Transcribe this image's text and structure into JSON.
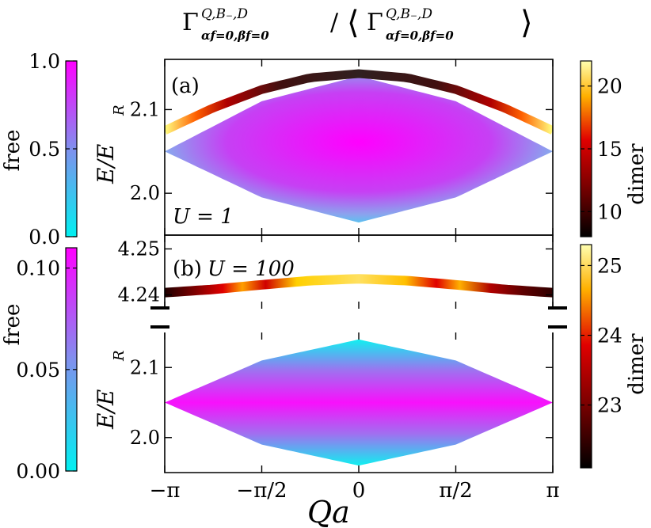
{
  "title": {
    "text": "Γ^{Q,B₋,D}_{α_f=0, β_f=0} / ⟨ Γ^{Q,B₋,D}_{α_f=0, β_f=0} ⟩",
    "gamma": "Γ",
    "sup": "Q,B₋,D",
    "sub": "αf=0,βf=0",
    "slash": "/",
    "lang": "⟨",
    "rang": "⟩"
  },
  "x_axis": {
    "label": "Qa",
    "ticks": [
      "−π",
      "−π/2",
      "0",
      "π/2",
      "π"
    ]
  },
  "colors": {
    "free_low": "#00f0f0",
    "free_high": "#ff00ff",
    "dimer_low": "#000000",
    "dimer_mid": "#e00000",
    "dimer_high": "#ffffa0"
  },
  "chart_data": [
    {
      "type": "heatmap",
      "panel": "(a)",
      "annotation": "U = 1",
      "ylabel": "E/E_R",
      "ylabel_main": "E/E",
      "ylabel_sub": "R",
      "xlim": [
        -3.1416,
        3.1416
      ],
      "ylim": [
        1.95,
        2.16
      ],
      "yticks": [
        2.0,
        2.1
      ],
      "ytick_labels": [
        "2.0",
        "2.1"
      ],
      "free_band": {
        "x": [
          -3.1416,
          -1.5708,
          0,
          1.5708,
          3.1416
        ],
        "upper": [
          2.05,
          2.11,
          2.14,
          2.11,
          2.05
        ],
        "lower": [
          2.05,
          1.995,
          1.965,
          1.995,
          2.05
        ]
      },
      "dimer_band": {
        "x": [
          -3.1416,
          -2.3562,
          -1.5708,
          -0.7854,
          0,
          0.7854,
          1.5708,
          2.3562,
          3.1416
        ],
        "energy": [
          2.075,
          2.102,
          2.124,
          2.138,
          2.143,
          2.138,
          2.124,
          2.102,
          2.075
        ],
        "value": [
          21,
          13,
          10,
          9.5,
          9,
          9.5,
          10,
          13,
          21
        ]
      },
      "colorbar_free": {
        "label": "free",
        "range": [
          0.0,
          1.0
        ],
        "ticks": [
          "0.0",
          "0.5",
          "1.0"
        ]
      },
      "colorbar_dimer": {
        "label": "dimer",
        "range": [
          8,
          22
        ],
        "ticks": [
          "10",
          "15",
          "20"
        ]
      }
    },
    {
      "type": "heatmap",
      "panel": "(b)",
      "annotation": "U = 100",
      "ylabel": "E/E_R",
      "ylabel_main": "E/E",
      "ylabel_sub": "R",
      "xlim": [
        -3.1416,
        3.1416
      ],
      "ylim_upper": [
        4.237,
        4.253
      ],
      "yticks_upper": [
        4.24,
        4.25
      ],
      "ytick_labels_upper": [
        "4.24",
        "4.25"
      ],
      "ylim_lower": [
        1.95,
        2.15
      ],
      "yticks_lower": [
        2.0,
        2.1
      ],
      "ytick_labels_lower": [
        "2.0",
        "2.1"
      ],
      "free_band": {
        "x": [
          -3.1416,
          -1.5708,
          0,
          1.5708,
          3.1416
        ],
        "upper": [
          2.05,
          2.11,
          2.14,
          2.11,
          2.05
        ],
        "lower": [
          2.05,
          1.99,
          1.96,
          1.99,
          2.05
        ]
      },
      "dimer_band": {
        "x": [
          -3.1416,
          -2.3562,
          -1.5708,
          -0.7854,
          0,
          0.7854,
          1.5708,
          2.3562,
          3.1416
        ],
        "energy": [
          4.2405,
          4.2412,
          4.2422,
          4.2431,
          4.2435,
          4.2431,
          4.2422,
          4.2412,
          4.2405
        ],
        "value": [
          22.6,
          23.2,
          24.0,
          24.8,
          25.2,
          24.8,
          24.0,
          23.2,
          22.6
        ]
      },
      "colorbar_free": {
        "label": "free",
        "range": [
          0.0,
          0.11
        ],
        "ticks": [
          "0.00",
          "0.05",
          "0.10"
        ]
      },
      "colorbar_dimer": {
        "label": "dimer",
        "range": [
          22.1,
          25.3
        ],
        "ticks": [
          "23",
          "24",
          "25"
        ]
      }
    }
  ]
}
